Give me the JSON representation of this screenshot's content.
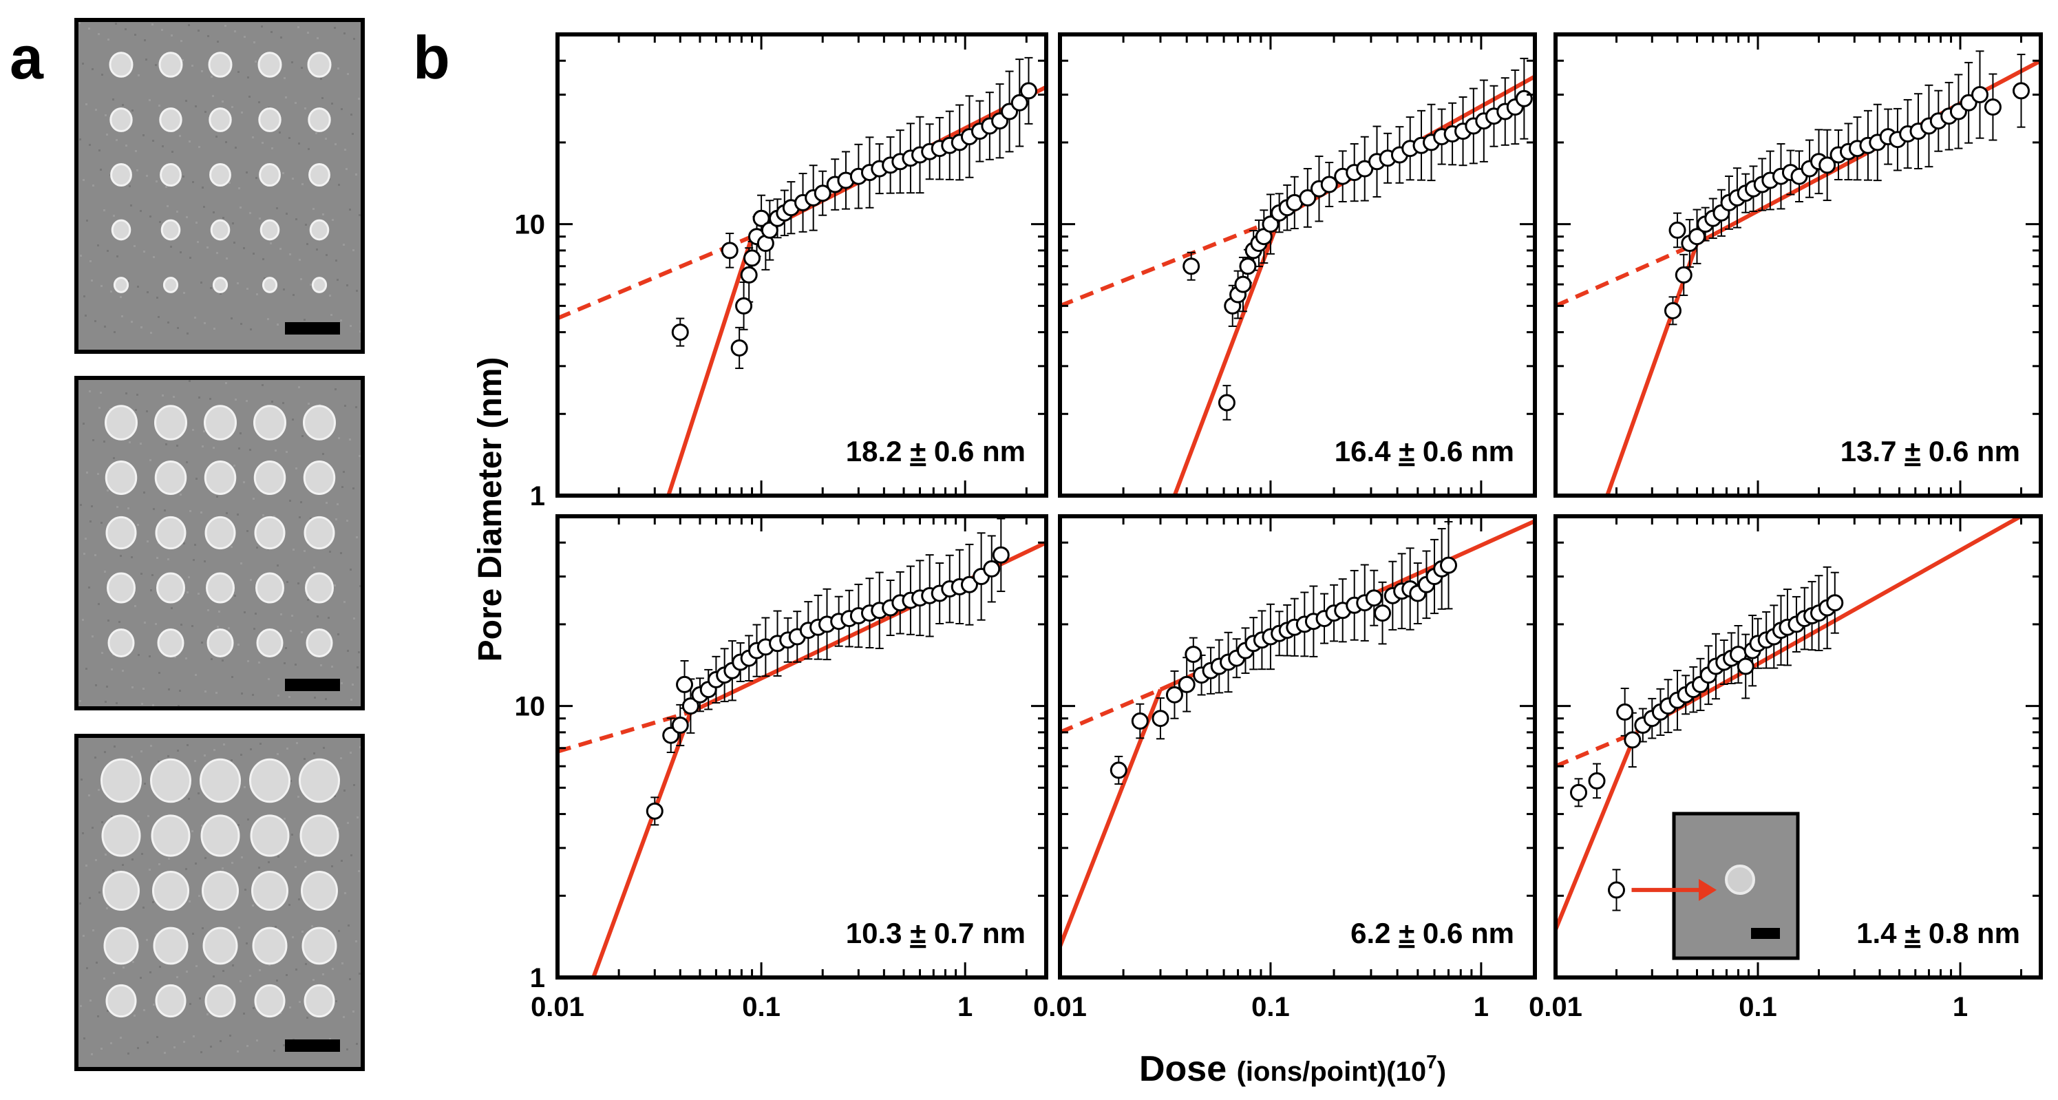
{
  "figure": {
    "panel_a_letter": "a",
    "panel_b_letter": "b",
    "y_axis_label": "Pore Diameter (nm)",
    "x_axis_label_main": "Dose ",
    "x_axis_label_units": "(ions/point)(10",
    "x_axis_label_exp": "7",
    "x_axis_label_close": ")",
    "x_tick_labels": [
      "0.01",
      "0.1",
      "1"
    ],
    "y_tick_labels": [
      "1",
      "10"
    ]
  },
  "colors": {
    "fit_line": "#e8391d",
    "marker_fill": "#ffffff",
    "marker_stroke": "#000000",
    "axis": "#000000",
    "sem_background": "#8a8a8a",
    "sem_pore": "#d9d9d9"
  },
  "sem_images": [
    {
      "name": "sem-image-1",
      "grid": "5x5",
      "pore_size": "small",
      "scale_bar": "scale-bar"
    },
    {
      "name": "sem-image-2",
      "grid": "5x5",
      "pore_size": "medium",
      "scale_bar": "scale-bar"
    },
    {
      "name": "sem-image-3",
      "grid": "5x5",
      "pore_size": "large",
      "scale_bar": "scale-bar"
    }
  ],
  "chart_data": [
    {
      "type": "scatter",
      "title": "",
      "annotation": "18.2 ± 0.6 nm",
      "annotation_value": "18.2",
      "annotation_pm": "±",
      "annotation_err": "0.6 nm",
      "xscale": "log",
      "yscale": "log",
      "xlim": [
        0.01,
        2.5
      ],
      "ylim": [
        1,
        50
      ],
      "xlabel": "Dose (ions/point)(10^7)",
      "ylabel": "Pore Diameter (nm)",
      "fit_steep": {
        "x": [
          0.035,
          0.09
        ],
        "y": [
          1.0,
          9.0
        ]
      },
      "fit_shallow_dashed": {
        "x": [
          0.01,
          0.09
        ],
        "y": [
          4.5,
          9.0
        ]
      },
      "fit_shallow_solid": {
        "x": [
          0.09,
          2.5
        ],
        "y": [
          9.0,
          32.0
        ]
      },
      "points": {
        "x": [
          0.04,
          0.07,
          0.078,
          0.082,
          0.087,
          0.09,
          0.095,
          0.1,
          0.105,
          0.11,
          0.12,
          0.13,
          0.14,
          0.16,
          0.18,
          0.2,
          0.23,
          0.26,
          0.3,
          0.34,
          0.38,
          0.43,
          0.48,
          0.54,
          0.6,
          0.67,
          0.75,
          0.84,
          0.94,
          1.05,
          1.18,
          1.32,
          1.48,
          1.65,
          1.85,
          2.05
        ],
        "y": [
          4.0,
          8.0,
          3.5,
          5.0,
          6.5,
          7.5,
          9.0,
          10.5,
          8.5,
          9.5,
          10.5,
          11.0,
          11.5,
          12.0,
          12.5,
          13.0,
          14.0,
          14.5,
          15.0,
          15.5,
          16.0,
          16.5,
          17.0,
          17.5,
          18.0,
          18.5,
          19.0,
          19.5,
          20.0,
          21.0,
          22.0,
          23.0,
          24.0,
          26.0,
          28.0,
          31.0
        ]
      }
    },
    {
      "type": "scatter",
      "annotation": "16.4 ± 0.6 nm",
      "annotation_value": "16.4",
      "annotation_pm": "±",
      "annotation_err": "0.6 nm",
      "xscale": "log",
      "yscale": "log",
      "xlim": [
        0.01,
        1.8
      ],
      "ylim": [
        1,
        50
      ],
      "fit_steep": {
        "x": [
          0.035,
          0.11
        ],
        "y": [
          1.0,
          10.5
        ]
      },
      "fit_shallow_dashed": {
        "x": [
          0.01,
          0.11
        ],
        "y": [
          5.0,
          10.5
        ]
      },
      "fit_shallow_solid": {
        "x": [
          0.11,
          1.8
        ],
        "y": [
          10.5,
          35.0
        ]
      },
      "points": {
        "x": [
          0.042,
          0.062,
          0.066,
          0.07,
          0.074,
          0.078,
          0.083,
          0.088,
          0.093,
          0.1,
          0.11,
          0.12,
          0.13,
          0.15,
          0.17,
          0.19,
          0.22,
          0.25,
          0.28,
          0.32,
          0.36,
          0.41,
          0.46,
          0.52,
          0.58,
          0.65,
          0.73,
          0.82,
          0.92,
          1.03,
          1.15,
          1.3,
          1.45,
          1.6
        ],
        "y": [
          7.0,
          2.2,
          5.0,
          5.5,
          6.0,
          7.0,
          8.0,
          8.5,
          9.0,
          10.0,
          11.0,
          11.5,
          12.0,
          12.5,
          13.5,
          14.0,
          15.0,
          15.5,
          16.0,
          17.0,
          17.5,
          18.0,
          19.0,
          19.5,
          20.0,
          21.0,
          21.5,
          22.0,
          23.0,
          24.0,
          25.0,
          26.0,
          27.0,
          29.0
        ]
      }
    },
    {
      "type": "scatter",
      "annotation": "13.7 ± 0.6 nm",
      "annotation_value": "13.7",
      "annotation_pm": "±",
      "annotation_err": "0.6 nm",
      "xscale": "log",
      "yscale": "log",
      "xlim": [
        0.01,
        2.5
      ],
      "ylim": [
        1,
        50
      ],
      "fit_steep": {
        "x": [
          0.018,
          0.05
        ],
        "y": [
          1.0,
          8.5
        ]
      },
      "fit_shallow_dashed": {
        "x": [
          0.01,
          0.05
        ],
        "y": [
          5.0,
          8.5
        ]
      },
      "fit_shallow_solid": {
        "x": [
          0.05,
          2.5
        ],
        "y": [
          8.5,
          40.0
        ]
      },
      "points": {
        "x": [
          0.038,
          0.04,
          0.043,
          0.046,
          0.05,
          0.055,
          0.06,
          0.066,
          0.072,
          0.079,
          0.087,
          0.095,
          0.105,
          0.115,
          0.13,
          0.145,
          0.16,
          0.18,
          0.2,
          0.22,
          0.25,
          0.28,
          0.31,
          0.35,
          0.39,
          0.44,
          0.49,
          0.55,
          0.62,
          0.7,
          0.78,
          0.88,
          0.98,
          1.1,
          1.25,
          1.45,
          2.0
        ],
        "y": [
          4.8,
          9.5,
          6.5,
          8.5,
          9.0,
          10.0,
          10.5,
          11.0,
          12.0,
          12.5,
          13.0,
          13.5,
          14.0,
          14.5,
          15.0,
          15.5,
          15.0,
          16.0,
          17.0,
          16.5,
          18.0,
          18.5,
          19.0,
          19.5,
          20.0,
          21.0,
          20.5,
          21.5,
          22.0,
          23.0,
          24.0,
          25.0,
          26.0,
          28.0,
          30.0,
          27.0,
          31.0
        ]
      }
    },
    {
      "type": "scatter",
      "annotation": "10.3 ± 0.7 nm",
      "annotation_value": "10.3",
      "annotation_pm": "±",
      "annotation_err": "0.7 nm",
      "xscale": "log",
      "yscale": "log",
      "xlim": [
        0.01,
        2.5
      ],
      "ylim": [
        1,
        50
      ],
      "fit_steep": {
        "x": [
          0.015,
          0.045
        ],
        "y": [
          1.0,
          9.5
        ]
      },
      "fit_shallow_dashed": {
        "x": [
          0.01,
          0.045
        ],
        "y": [
          6.8,
          9.5
        ]
      },
      "fit_shallow_solid": {
        "x": [
          0.045,
          2.5
        ],
        "y": [
          9.5,
          40.0
        ]
      },
      "points": {
        "x": [
          0.03,
          0.036,
          0.04,
          0.042,
          0.045,
          0.05,
          0.055,
          0.06,
          0.066,
          0.072,
          0.079,
          0.087,
          0.095,
          0.105,
          0.12,
          0.135,
          0.15,
          0.17,
          0.19,
          0.21,
          0.24,
          0.27,
          0.3,
          0.34,
          0.38,
          0.43,
          0.48,
          0.54,
          0.6,
          0.67,
          0.75,
          0.84,
          0.94,
          1.05,
          1.2,
          1.35,
          1.5
        ],
        "y": [
          4.1,
          7.8,
          8.5,
          12.0,
          10.0,
          11.0,
          11.5,
          12.5,
          13.0,
          13.5,
          14.5,
          15.0,
          16.0,
          16.5,
          17.0,
          17.5,
          18.0,
          19.0,
          19.5,
          20.0,
          20.5,
          21.0,
          21.5,
          22.0,
          22.5,
          23.0,
          24.0,
          24.5,
          25.0,
          25.5,
          26.0,
          27.0,
          27.5,
          28.0,
          30.0,
          32.0,
          36.0
        ]
      }
    },
    {
      "type": "scatter",
      "annotation": "6.2 ± 0.6 nm",
      "annotation_value": "6.2",
      "annotation_pm": "±",
      "annotation_err": "0.6 nm",
      "xscale": "log",
      "yscale": "log",
      "xlim": [
        0.01,
        1.8
      ],
      "ylim": [
        1,
        50
      ],
      "fit_steep": {
        "x": [
          0.01,
          0.03
        ],
        "y": [
          1.3,
          11.5
        ]
      },
      "fit_shallow_dashed": {
        "x": [
          0.01,
          0.03
        ],
        "y": [
          8.0,
          11.5
        ]
      },
      "fit_shallow_solid": {
        "x": [
          0.03,
          1.8
        ],
        "y": [
          11.5,
          48.0
        ]
      },
      "points": {
        "x": [
          0.019,
          0.024,
          0.03,
          0.035,
          0.04,
          0.043,
          0.047,
          0.052,
          0.057,
          0.063,
          0.069,
          0.076,
          0.083,
          0.091,
          0.1,
          0.11,
          0.12,
          0.13,
          0.145,
          0.16,
          0.18,
          0.2,
          0.22,
          0.25,
          0.28,
          0.31,
          0.34,
          0.38,
          0.42,
          0.46,
          0.5,
          0.55,
          0.6,
          0.65,
          0.7
        ],
        "y": [
          5.8,
          8.8,
          9.0,
          11.0,
          12.0,
          15.5,
          13.0,
          13.5,
          14.0,
          14.5,
          15.0,
          16.0,
          17.0,
          17.5,
          18.0,
          18.5,
          19.0,
          19.5,
          20.0,
          20.5,
          21.0,
          22.0,
          22.5,
          23.5,
          24.0,
          25.0,
          22.0,
          25.5,
          26.5,
          27.0,
          26.0,
          28.0,
          30.0,
          32.0,
          33.0
        ]
      }
    },
    {
      "type": "scatter",
      "annotation": "1.4 ± 0.8 nm",
      "annotation_value": "1.4",
      "annotation_pm": "±",
      "annotation_err": "0.8 nm",
      "xscale": "log",
      "yscale": "log",
      "xlim": [
        0.01,
        2.5
      ],
      "ylim": [
        1,
        50
      ],
      "fit_steep": {
        "x": [
          0.01,
          0.025
        ],
        "y": [
          1.5,
          8.0
        ]
      },
      "fit_shallow_dashed": {
        "x": [
          0.01,
          0.025
        ],
        "y": [
          6.0,
          8.0
        ]
      },
      "fit_shallow_solid": {
        "x": [
          0.025,
          2.5
        ],
        "y": [
          8.0,
          55.0
        ]
      },
      "inset": {
        "arrow_target_point_index": 2,
        "description_name": "inset-sem-pore",
        "scale_bar": "scale-bar"
      },
      "points": {
        "x": [
          0.013,
          0.016,
          0.02,
          0.022,
          0.024,
          0.027,
          0.03,
          0.033,
          0.036,
          0.04,
          0.044,
          0.048,
          0.052,
          0.057,
          0.062,
          0.068,
          0.074,
          0.08,
          0.087,
          0.094,
          0.1,
          0.11,
          0.12,
          0.13,
          0.14,
          0.155,
          0.17,
          0.185,
          0.2,
          0.22,
          0.24
        ],
        "y": [
          4.8,
          5.3,
          2.1,
          9.5,
          7.5,
          8.5,
          9.0,
          9.5,
          10.0,
          10.5,
          11.0,
          11.5,
          12.0,
          13.0,
          14.0,
          14.5,
          15.0,
          15.5,
          14.0,
          16.0,
          17.0,
          17.5,
          18.0,
          19.0,
          19.5,
          20.0,
          21.0,
          21.5,
          22.0,
          23.0,
          24.0
        ]
      }
    }
  ]
}
